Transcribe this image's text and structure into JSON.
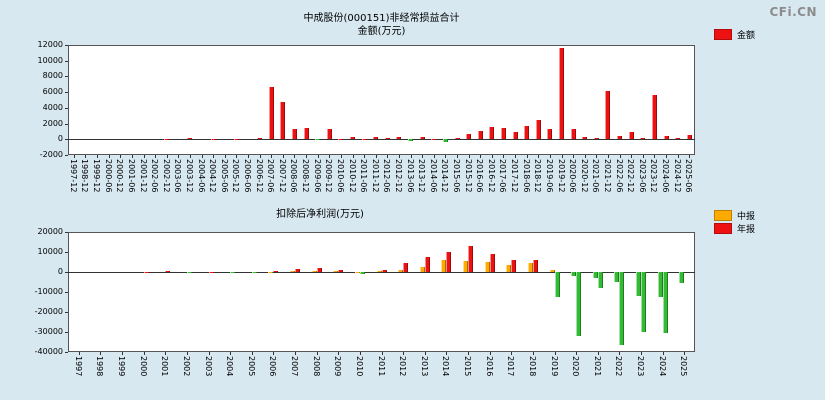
{
  "page": {
    "bg": "#d7e8f1",
    "logo": "CFi.CN"
  },
  "chart_data": [
    {
      "type": "bar",
      "title": "中成股份(000151)非经常损益合计",
      "subtitle": "金额(万元)",
      "legend": [
        {
          "label": "金额",
          "color": "#ee1111"
        }
      ],
      "ylim": [
        -2000,
        12000
      ],
      "yticks": [
        12000,
        10000,
        8000,
        6000,
        4000,
        2000,
        0,
        -2000
      ],
      "color_positive": "#ee1111",
      "color_negative": "#33bb33",
      "categories": [
        "1997-12",
        "1998-12",
        "1999-12",
        "2000-06",
        "2000-12",
        "2001-06",
        "2001-12",
        "2002-06",
        "2002-12",
        "2003-06",
        "2003-12",
        "2004-06",
        "2004-12",
        "2005-06",
        "2005-12",
        "2006-06",
        "2006-12",
        "2007-06",
        "2007-12",
        "2008-06",
        "2008-12",
        "2009-06",
        "2009-12",
        "2010-06",
        "2010-12",
        "2011-06",
        "2011-12",
        "2012-06",
        "2012-12",
        "2013-06",
        "2013-12",
        "2014-06",
        "2014-12",
        "2015-06",
        "2015-12",
        "2016-06",
        "2016-12",
        "2017-06",
        "2017-12",
        "2018-06",
        "2018-12",
        "2019-06",
        "2019-12",
        "2020-06",
        "2020-12",
        "2021-06",
        "2021-12",
        "2022-06",
        "2022-12",
        "2023-06",
        "2023-12",
        "2024-06",
        "2024-12",
        "2025-06"
      ],
      "values": [
        0,
        0,
        0,
        0,
        0,
        0,
        0,
        0,
        100,
        0,
        150,
        0,
        100,
        0,
        100,
        0,
        150,
        6700,
        4800,
        1300,
        1400,
        -150,
        1300,
        100,
        250,
        100,
        300,
        150,
        300,
        -200,
        250,
        100,
        -300,
        200,
        700,
        1100,
        1600,
        1400,
        900,
        1700,
        2400,
        1300,
        11600,
        1300,
        300,
        150,
        6100,
        400,
        900,
        200,
        5700,
        400,
        200,
        500
      ]
    },
    {
      "type": "bar",
      "title": "扣除后净利润(万元)",
      "legend": [
        {
          "label": "中报",
          "color": "#ffaa00"
        },
        {
          "label": "年报",
          "color": "#ee1111"
        }
      ],
      "ylim": [
        -40000,
        20000
      ],
      "yticks": [
        20000,
        10000,
        0,
        -10000,
        -20000,
        -30000,
        -40000
      ],
      "color_negative": "#33bb33",
      "categories": [
        "1997",
        "1998",
        "1999",
        "2000",
        "2001",
        "2002",
        "2003",
        "2004",
        "2005",
        "2006",
        "2007",
        "2008",
        "2009",
        "2010",
        "2011",
        "2012",
        "2013",
        "2014",
        "2015",
        "2016",
        "2017",
        "2018",
        "2019",
        "2020",
        "2021",
        "2022",
        "2023",
        "2024",
        "2025"
      ],
      "series": [
        {
          "name": "中报",
          "color": "#ffaa00",
          "values": [
            0,
            0,
            0,
            0,
            0,
            0,
            0,
            0,
            0,
            100,
            300,
            600,
            400,
            200,
            300,
            1200,
            2600,
            6200,
            5400,
            5000,
            3600,
            4400,
            1000,
            -2000,
            -3000,
            -5200,
            -12000,
            -12500,
            -5500
          ]
        },
        {
          "name": "年报",
          "color": "#ee1111",
          "values": [
            0,
            0,
            0,
            200,
            300,
            -200,
            200,
            -300,
            -400,
            300,
            1600,
            2100,
            1200,
            -800,
            900,
            4300,
            7600,
            9800,
            12800,
            9200,
            6100,
            5800,
            -12500,
            -32000,
            -8200,
            -36500,
            -30000,
            -30500,
            null
          ]
        }
      ]
    }
  ]
}
